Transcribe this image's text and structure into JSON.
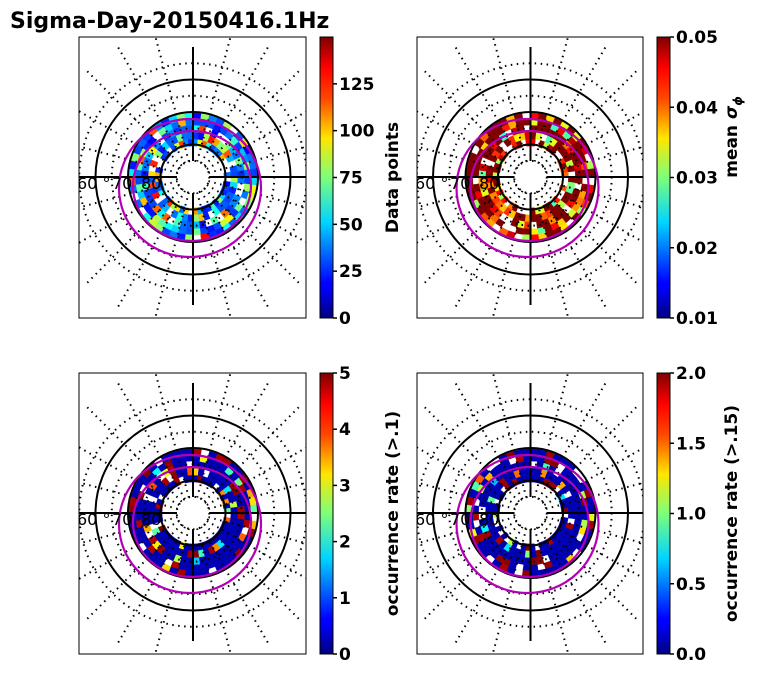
{
  "chart_data": {
    "type": "heatmap",
    "title": "Sigma-Day-20150416.1Hz",
    "projection": "polar (magnetic latitude / MLT, north pole centered)",
    "latitude_labels": [
      "60",
      "70",
      "80"
    ],
    "latitude_label_suffix": "°",
    "solid_latitude_circles": [
      60,
      70,
      80
    ],
    "dotted_latitude_circles": [
      55,
      65,
      75,
      85
    ],
    "meridian_spacing_hours": 1,
    "auroral_oval_color": "#b400b4",
    "colormap": "jet",
    "panels": [
      {
        "id": "data-points",
        "position": "top-left",
        "colorbar_label": "Data points",
        "vmin": 0,
        "vmax": 150,
        "ticks": [
          0,
          25,
          50,
          75,
          100,
          125
        ],
        "tick_labels": [
          "0",
          "25",
          "50",
          "75",
          "100",
          "125"
        ],
        "dominant_level": 0.2,
        "seed": 11
      },
      {
        "id": "mean-sigma-phi",
        "position": "top-right",
        "colorbar_label": "mean σ",
        "colorbar_label_sub": "ϕ",
        "vmin": 0.01,
        "vmax": 0.05,
        "ticks": [
          0.01,
          0.02,
          0.03,
          0.04,
          0.05
        ],
        "tick_labels": [
          "0.01",
          "0.02",
          "0.03",
          "0.04",
          "0.05"
        ],
        "dominant_level": 0.95,
        "seed": 23
      },
      {
        "id": "occurrence-rate-0.1",
        "position": "bottom-left",
        "colorbar_label": "occurrence rate (>.1)",
        "vmin": 0,
        "vmax": 5,
        "ticks": [
          0,
          1,
          2,
          3,
          4,
          5
        ],
        "tick_labels": [
          "0",
          "1",
          "2",
          "3",
          "4",
          "5"
        ],
        "dominant_level": 0.0,
        "seed": 37
      },
      {
        "id": "occurrence-rate-0.15",
        "position": "bottom-right",
        "colorbar_label": "occurrence rate (>.15)",
        "vmin": 0,
        "vmax": 2,
        "ticks": [
          0.0,
          0.5,
          1.0,
          1.5,
          2.0
        ],
        "tick_labels": [
          "0.0",
          "0.5",
          "1.0",
          "1.5",
          "2.0"
        ],
        "dominant_level": 0.0,
        "seed": 53
      }
    ]
  }
}
